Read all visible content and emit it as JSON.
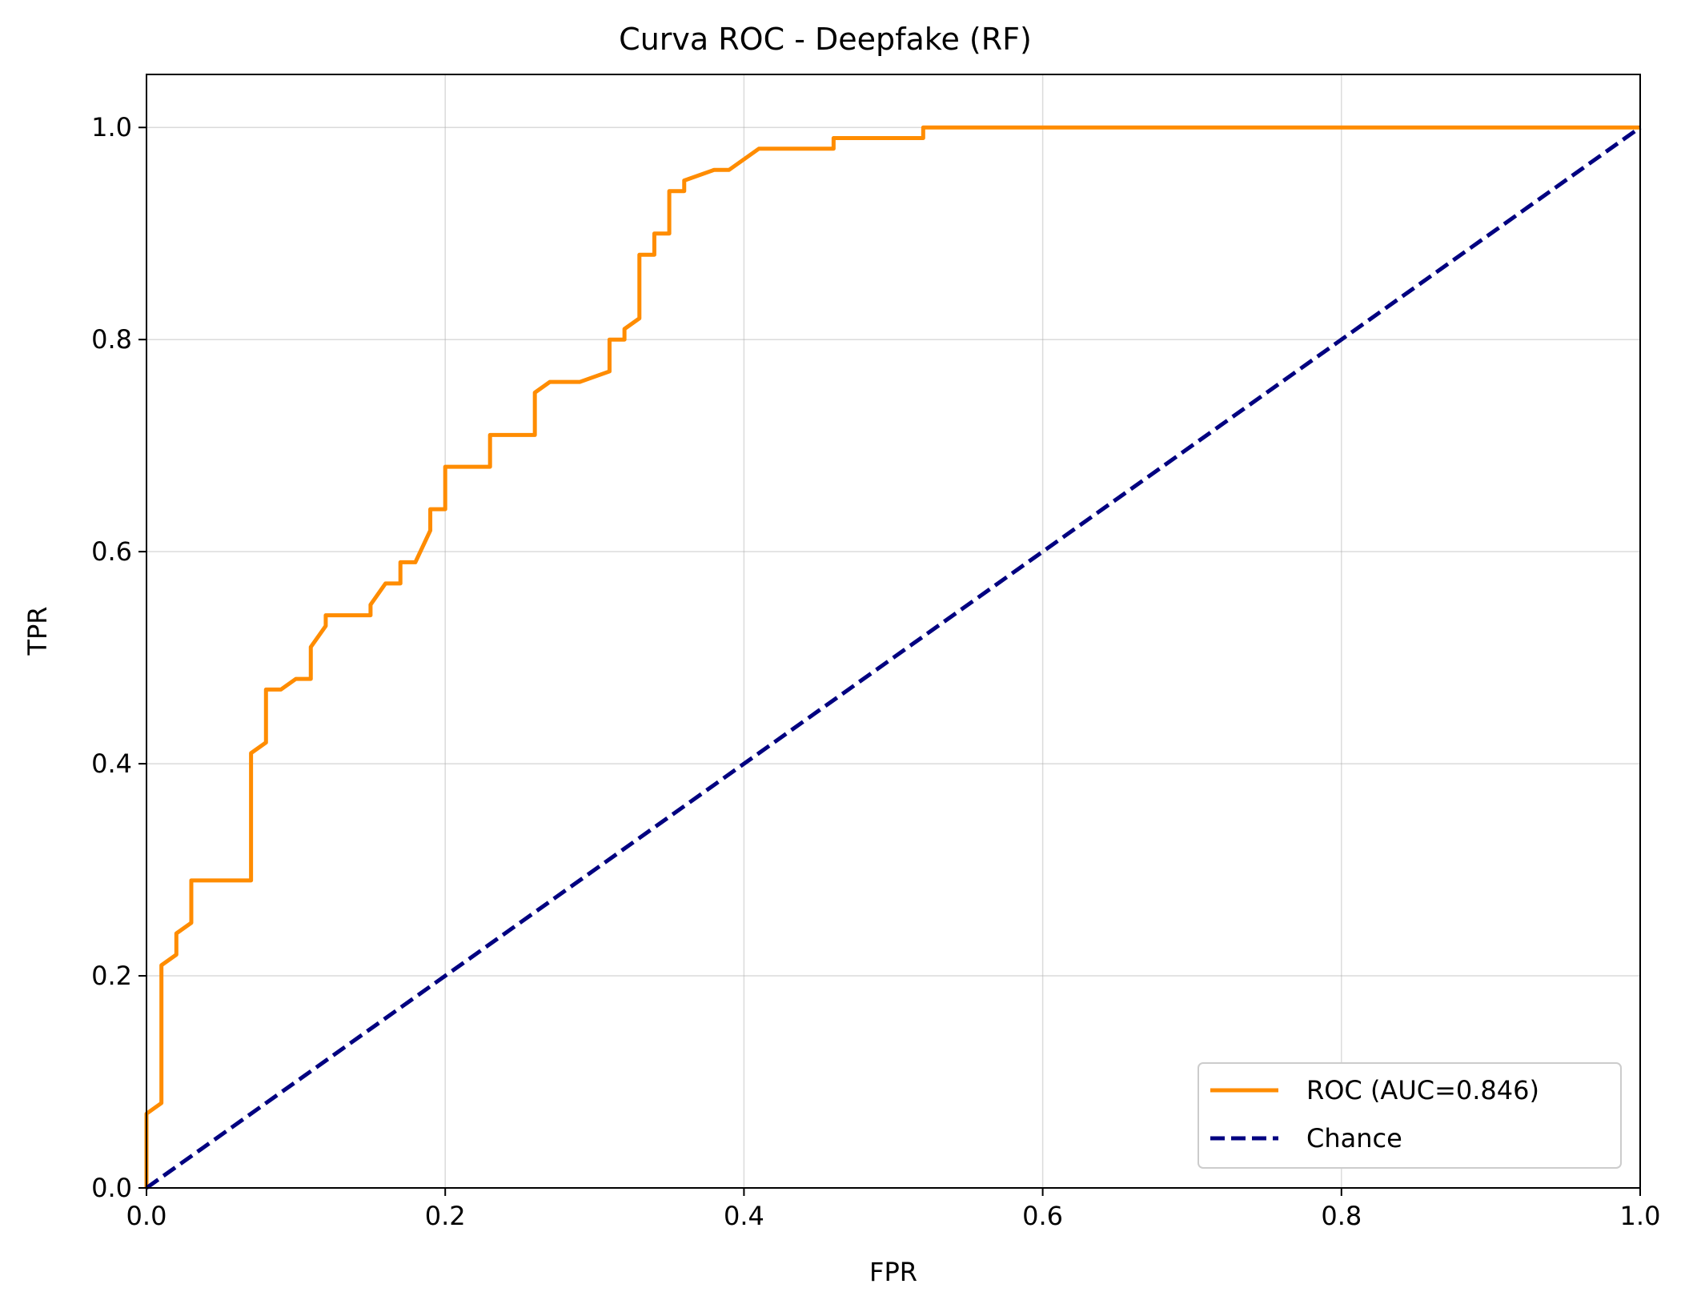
{
  "chart_data": {
    "type": "line",
    "title": "Curva ROC - Deepfake (RF)",
    "xlabel": "FPR",
    "ylabel": "TPR",
    "xlim": [
      0.0,
      1.0
    ],
    "ylim": [
      0.0,
      1.05
    ],
    "xticks": [
      0.0,
      0.2,
      0.4,
      0.6,
      0.8,
      1.0
    ],
    "yticks": [
      0.0,
      0.2,
      0.4,
      0.6,
      0.8,
      1.0
    ],
    "xtick_labels": [
      "0.0",
      "0.2",
      "0.4",
      "0.6",
      "0.8",
      "1.0"
    ],
    "ytick_labels": [
      "0.0",
      "0.2",
      "0.4",
      "0.6",
      "0.8",
      "1.0"
    ],
    "grid": true,
    "legend_position": "lower right",
    "series": [
      {
        "name": "ROC (AUC=0.846)",
        "color": "#ff8c00",
        "style": "solid",
        "x": [
          0.0,
          0.0,
          0.01,
          0.01,
          0.01,
          0.02,
          0.02,
          0.03,
          0.03,
          0.07,
          0.07,
          0.08,
          0.08,
          0.09,
          0.1,
          0.11,
          0.11,
          0.12,
          0.12,
          0.15,
          0.15,
          0.16,
          0.17,
          0.17,
          0.18,
          0.19,
          0.19,
          0.2,
          0.2,
          0.23,
          0.23,
          0.26,
          0.26,
          0.27,
          0.29,
          0.31,
          0.31,
          0.32,
          0.32,
          0.33,
          0.33,
          0.34,
          0.34,
          0.35,
          0.35,
          0.36,
          0.36,
          0.38,
          0.39,
          0.41,
          0.46,
          0.46,
          0.52,
          0.52,
          1.0
        ],
        "y": [
          0.0,
          0.07,
          0.08,
          0.12,
          0.21,
          0.22,
          0.24,
          0.25,
          0.29,
          0.29,
          0.41,
          0.42,
          0.47,
          0.47,
          0.48,
          0.48,
          0.51,
          0.53,
          0.54,
          0.54,
          0.55,
          0.57,
          0.57,
          0.59,
          0.59,
          0.62,
          0.64,
          0.64,
          0.68,
          0.68,
          0.71,
          0.71,
          0.75,
          0.76,
          0.76,
          0.77,
          0.8,
          0.8,
          0.81,
          0.82,
          0.88,
          0.88,
          0.9,
          0.9,
          0.94,
          0.94,
          0.95,
          0.96,
          0.96,
          0.98,
          0.98,
          0.99,
          0.99,
          1.0,
          1.0
        ]
      },
      {
        "name": "Chance",
        "color": "#000080",
        "style": "dashed",
        "x": [
          0.0,
          1.0
        ],
        "y": [
          0.0,
          1.0
        ]
      }
    ]
  }
}
